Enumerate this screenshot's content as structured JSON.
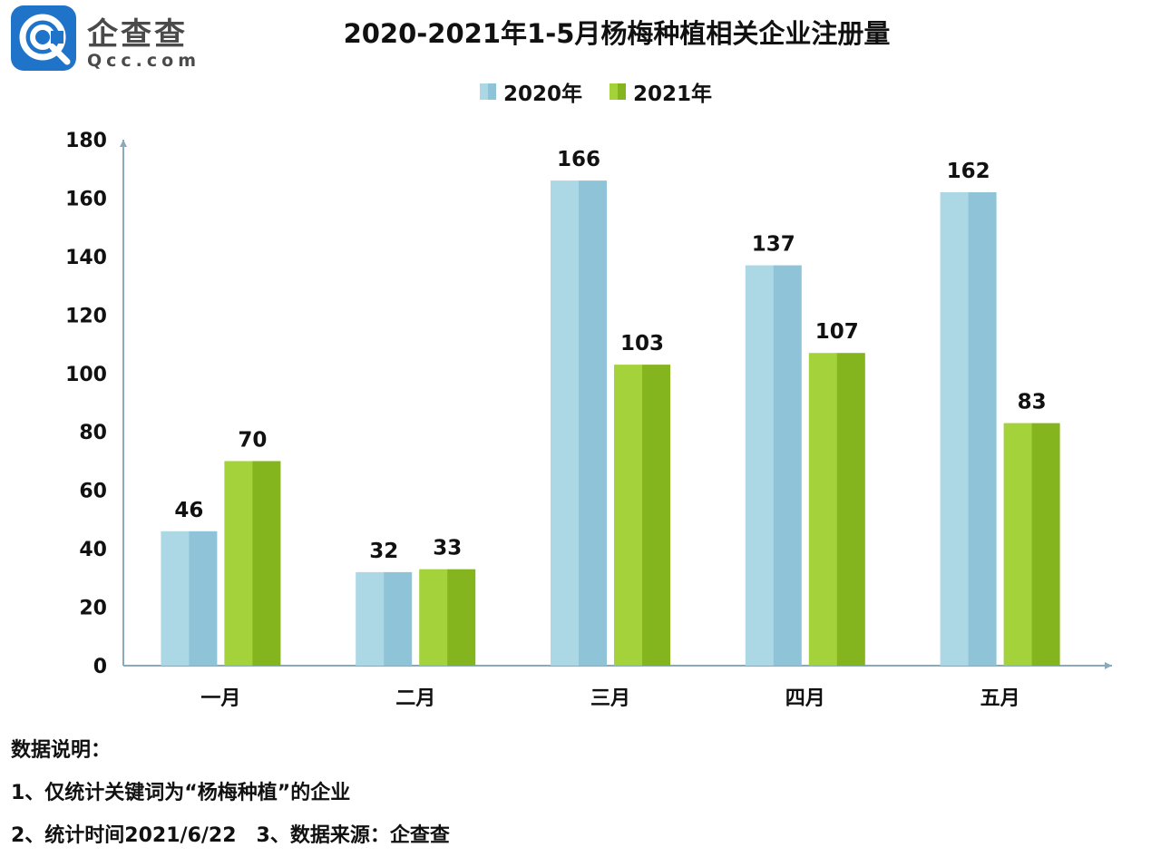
{
  "logo": {
    "name_cn": "企查查",
    "domain": "Qcc.com"
  },
  "colors": {
    "s2020_light": "#acd8e6",
    "s2020_dark": "#8fc4d8",
    "s2021_light": "#a4d23a",
    "s2021_dark": "#84b41e",
    "axis": "#8aaabb",
    "logo": "#1f73c8"
  },
  "chart_data": {
    "type": "bar",
    "title": "2020-2021年1-5月杨梅种植相关企业注册量",
    "categories": [
      "一月",
      "二月",
      "三月",
      "四月",
      "五月"
    ],
    "series": [
      {
        "name": "2020年",
        "values": [
          46,
          32,
          166,
          137,
          162
        ]
      },
      {
        "name": "2021年",
        "values": [
          70,
          33,
          103,
          107,
          83
        ]
      }
    ],
    "ylim": [
      0,
      180
    ],
    "yticks": [
      0,
      20,
      40,
      60,
      80,
      100,
      120,
      140,
      160,
      180
    ],
    "xlabel": "",
    "ylabel": "",
    "legend": "top-center",
    "grid": false
  },
  "notes": {
    "heading": "数据说明：",
    "line1": "1、仅统计关键词为“杨梅种植”的企业",
    "line2": "2、统计时间2021/6/22　3、数据来源：企查查"
  }
}
